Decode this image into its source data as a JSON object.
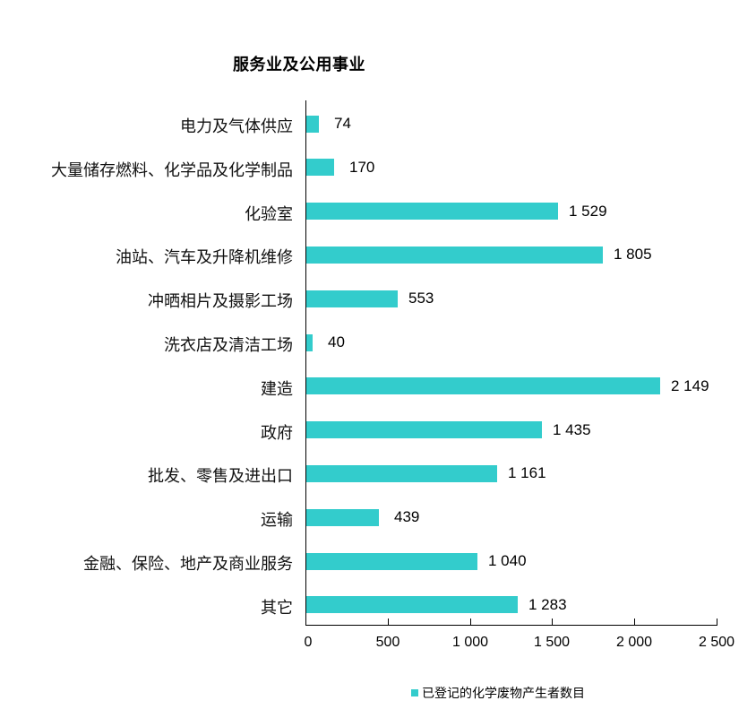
{
  "chart_data": {
    "type": "bar",
    "orientation": "horizontal",
    "title": "服务业及公用事业",
    "categories": [
      "电力及气体供应",
      "大量储存燃料、化学品及化学制品",
      "化验室",
      "油站、汽车及升降机维修",
      "冲晒相片及摄影工场",
      "洗衣店及清洁工场",
      "建造",
      "政府",
      "批发、零售及进出口",
      "运输",
      "金融、保险、地产及商业服务",
      "其它"
    ],
    "series": [
      {
        "name": "已登记的化学废物产生者数目",
        "color": "#33CCCC",
        "values": [
          74,
          170,
          1529,
          1805,
          553,
          40,
          2149,
          1435,
          1161,
          439,
          1040,
          1283
        ],
        "labels": [
          "74",
          "170",
          "1 529",
          "1 805",
          "553",
          "40",
          "2 149",
          "1 435",
          "1 161",
          "439",
          "1 040",
          "1 283"
        ]
      }
    ],
    "xlabel": "",
    "ylabel": "",
    "xlim": [
      0,
      2500
    ],
    "xticks": [
      0,
      500,
      1000,
      1500,
      2000,
      2500
    ],
    "xtick_labels": [
      "0",
      "500",
      "1 000",
      "1 500",
      "2 000",
      "2 500"
    ],
    "grid": false,
    "legend_position": "bottom"
  },
  "legend": {
    "label": "已登记的化学废物产生者数目"
  }
}
